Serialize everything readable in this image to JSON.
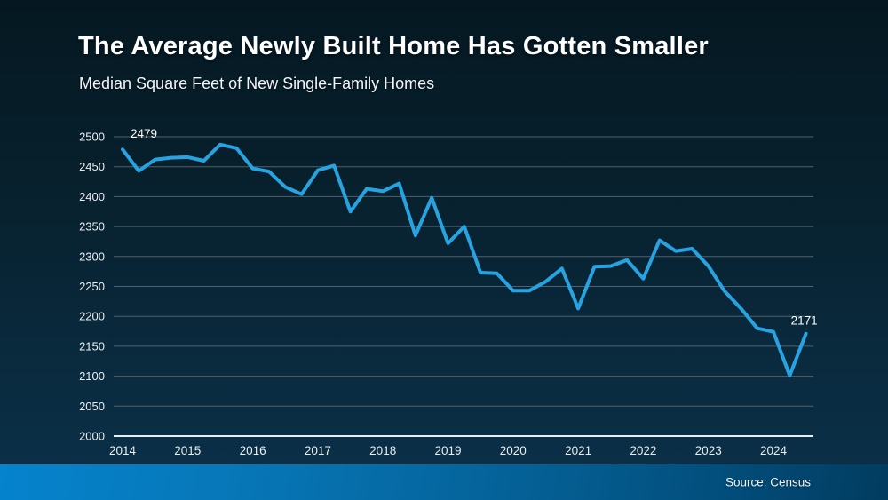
{
  "header": {
    "title": "The Average Newly Built Home Has Gotten Smaller",
    "subtitle": "Median Square Feet of New Single-Family Homes"
  },
  "footer": {
    "source": "Source: Census"
  },
  "colors": {
    "background_top": "#051822",
    "background_bottom": "#0B3149",
    "line": "#27A3E2",
    "gridline": "#51616B",
    "axis": "#E9EEF1",
    "tick_text": "#E9EEF1",
    "annotation_text": "#FFFFFF",
    "footer_bar_left": "#0583CD",
    "footer_bar_right": "#023C5F"
  },
  "chart_data": {
    "type": "line",
    "title": "Median Square Feet of New Single-Family Homes",
    "x_start": "2014 Q1",
    "x_end": "2024 Q3",
    "points_per_year": 4,
    "x_tick_labels": [
      "2014",
      "2015",
      "2016",
      "2017",
      "2018",
      "2019",
      "2020",
      "2021",
      "2022",
      "2023",
      "2024"
    ],
    "ylim": [
      2000,
      2500
    ],
    "ytick_step": 50,
    "grid": "horizontal",
    "legend": "none",
    "values": [
      2479,
      2443,
      2462,
      2465,
      2466,
      2460,
      2487,
      2481,
      2447,
      2442,
      2416,
      2404,
      2444,
      2452,
      2375,
      2413,
      2409,
      2422,
      2335,
      2398,
      2322,
      2350,
      2273,
      2272,
      2243,
      2243,
      2258,
      2280,
      2213,
      2283,
      2284,
      2294,
      2263,
      2327,
      2309,
      2313,
      2284,
      2242,
      2213,
      2180,
      2174,
      2101,
      2171
    ],
    "annotations": [
      {
        "index": 0,
        "label": "2479",
        "position": "above-right"
      },
      {
        "index": 42,
        "label": "2171",
        "position": "above-left"
      }
    ]
  }
}
